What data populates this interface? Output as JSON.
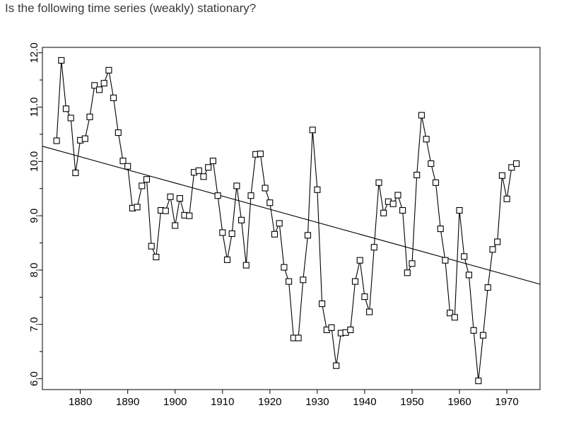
{
  "question": "Is the following time series (weakly) stationary?",
  "chart_data": {
    "type": "line",
    "title": "",
    "xlabel": "",
    "ylabel": "",
    "xlim": [
      1872,
      1977
    ],
    "ylim": [
      5.8,
      12.1
    ],
    "xticks": [
      1880,
      1890,
      1900,
      1910,
      1920,
      1930,
      1940,
      1950,
      1960,
      1970
    ],
    "xtick_labels": [
      "1880",
      "1890",
      "1900",
      "1910",
      "1920",
      "1930",
      "1940",
      "1950",
      "1960",
      "1970"
    ],
    "yticks": [
      6.0,
      7.0,
      8.0,
      9.0,
      10.0,
      11.0,
      12.0
    ],
    "ytick_labels": [
      "6.0",
      "7.0",
      "8.0",
      "9.0",
      "10.0",
      "11.0",
      "12.0"
    ],
    "minor_yticks": [
      6.5,
      7.5,
      8.5,
      9.5,
      10.5,
      11.5
    ],
    "marker": "square",
    "line_color": "#000000",
    "grid": false,
    "series": [
      {
        "x": [
          1875,
          1876,
          1877,
          1878,
          1879,
          1880,
          1881,
          1882,
          1883,
          1884,
          1885,
          1886,
          1887,
          1888,
          1889,
          1890,
          1891,
          1892,
          1893,
          1894,
          1895,
          1896,
          1897,
          1898,
          1899,
          1900,
          1901,
          1902,
          1903,
          1904,
          1905,
          1906,
          1907,
          1908,
          1909,
          1910,
          1911,
          1912,
          1913,
          1914,
          1915,
          1916,
          1917,
          1918,
          1919,
          1920,
          1921,
          1922,
          1923,
          1924,
          1925,
          1926,
          1927,
          1928,
          1929,
          1930,
          1931,
          1932,
          1933,
          1934,
          1935,
          1936,
          1937,
          1938,
          1939,
          1940,
          1941,
          1942,
          1943,
          1944,
          1945,
          1946,
          1947,
          1948,
          1949,
          1950,
          1951,
          1952,
          1953,
          1954,
          1955,
          1956,
          1957,
          1958,
          1959,
          1960,
          1961,
          1962,
          1963,
          1964,
          1965,
          1966,
          1967,
          1968,
          1969,
          1970,
          1971,
          1972
        ],
        "values": [
          10.38,
          11.86,
          10.97,
          10.8,
          9.79,
          10.39,
          10.42,
          10.82,
          11.4,
          11.32,
          11.44,
          11.68,
          11.17,
          10.53,
          10.01,
          9.91,
          9.14,
          9.16,
          9.55,
          9.67,
          8.44,
          8.24,
          9.1,
          9.09,
          9.35,
          8.82,
          9.32,
          9.01,
          9.0,
          9.8,
          9.83,
          9.72,
          9.89,
          10.01,
          9.37,
          8.69,
          8.19,
          8.67,
          9.55,
          8.92,
          8.09,
          9.37,
          10.13,
          10.14,
          9.51,
          9.24,
          8.66,
          8.86,
          8.05,
          7.79,
          6.75,
          6.75,
          7.82,
          8.64,
          10.58,
          9.48,
          7.38,
          6.9,
          6.94,
          6.24,
          6.84,
          6.85,
          6.9,
          7.79,
          8.18,
          7.51,
          7.23,
          8.42,
          9.61,
          9.05,
          9.26,
          9.22,
          9.38,
          9.1,
          7.95,
          8.12,
          9.75,
          10.85,
          10.41,
          9.96,
          9.61,
          8.76,
          8.18,
          7.21,
          7.13,
          9.1,
          8.25,
          7.91,
          6.89,
          5.96,
          6.8,
          7.68,
          8.38,
          8.52,
          9.74,
          9.31,
          9.89,
          9.96
        ]
      }
    ],
    "trend_line": {
      "x": [
        1872,
        1977
      ],
      "values": [
        10.28,
        7.74
      ]
    }
  }
}
